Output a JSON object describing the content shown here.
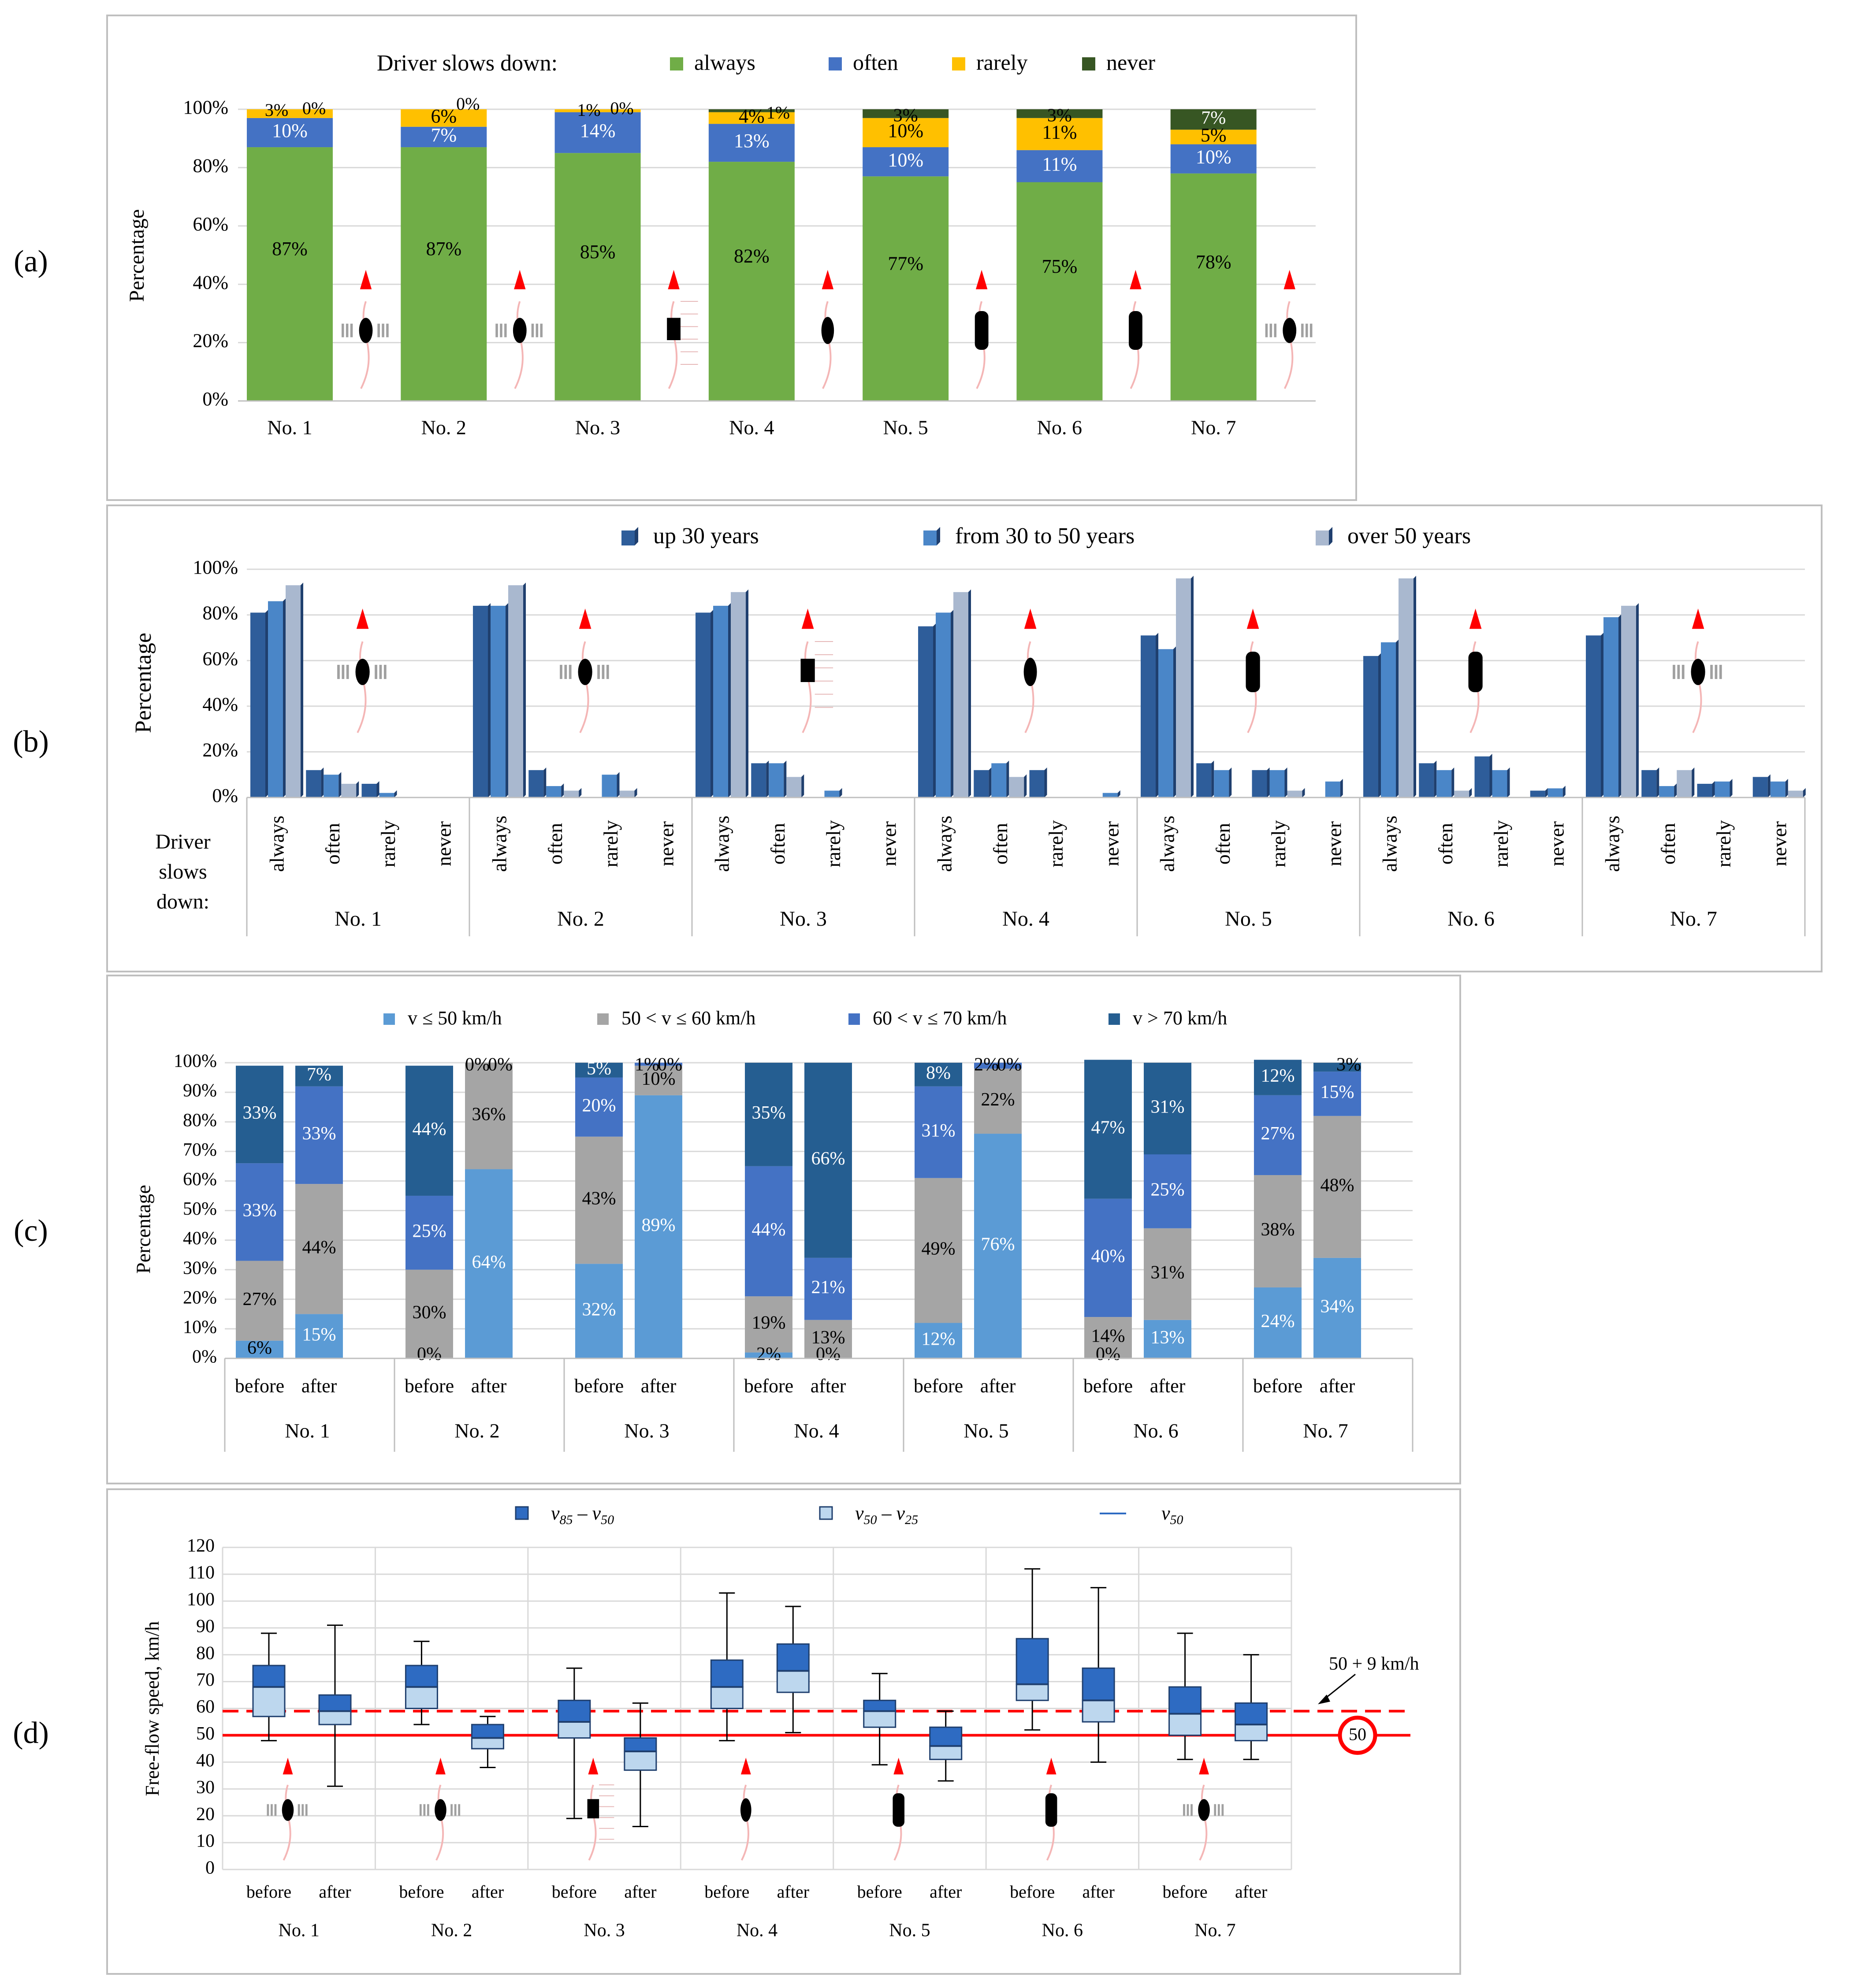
{
  "panel_labels": [
    "(a)",
    "(b)",
    "(c)",
    "(d)"
  ],
  "chart_data": [
    {
      "panel": "(a)",
      "type": "bar",
      "stacked": true,
      "legend_title": "Driver slows down:",
      "legend_placement": "top",
      "ylabel": "Percentage",
      "ylim": [
        0,
        100
      ],
      "yticks": [
        "0%",
        "20%",
        "40%",
        "60%",
        "80%",
        "100%"
      ],
      "categories": [
        "No. 1",
        "No. 2",
        "No. 3",
        "No. 4",
        "No. 5",
        "No. 6",
        "No. 7"
      ],
      "series": [
        {
          "name": "always",
          "color": "#70ad47",
          "values": [
            87,
            87,
            85,
            82,
            77,
            75,
            78
          ]
        },
        {
          "name": "often",
          "color": "#4472c4",
          "values": [
            10,
            7,
            14,
            13,
            10,
            11,
            10
          ]
        },
        {
          "name": "rarely",
          "color": "#ffc000",
          "values": [
            3,
            6,
            1,
            4,
            10,
            11,
            5
          ]
        },
        {
          "name": "never",
          "color": "#375623",
          "values": [
            0,
            0,
            0,
            1,
            3,
            3,
            7
          ]
        }
      ],
      "labels": [
        [
          "87%",
          "10%",
          "3%",
          "0%"
        ],
        [
          "87%",
          "7%",
          "6%",
          "0%"
        ],
        [
          "85%",
          "14%",
          "1%",
          "0%"
        ],
        [
          "82%",
          "13%",
          "4%",
          "1%"
        ],
        [
          "77%",
          "10%",
          "10%",
          "3%"
        ],
        [
          "75%",
          "11%",
          "11%",
          "3%"
        ],
        [
          "78%",
          "10%",
          "5%",
          "7%"
        ]
      ]
    },
    {
      "panel": "(b)",
      "type": "bar",
      "legend_placement": "top",
      "ylabel": "Percentage",
      "ylim": [
        0,
        100
      ],
      "yticks": [
        "0%",
        "20%",
        "40%",
        "60%",
        "80%",
        "100%"
      ],
      "row_header": [
        "Driver",
        "slows",
        "down:"
      ],
      "sub_categories": [
        "always",
        "often",
        "rarely",
        "never"
      ],
      "categories": [
        "No. 1",
        "No. 2",
        "No. 3",
        "No. 4",
        "No. 5",
        "No. 6",
        "No. 7"
      ],
      "series": [
        {
          "name": "up 30 years",
          "color": "#2e5d9a",
          "values": [
            [
              81,
              12,
              6,
              0
            ],
            [
              84,
              12,
              0,
              0
            ],
            [
              81,
              15,
              0,
              0
            ],
            [
              75,
              12,
              12,
              0
            ],
            [
              71,
              15,
              12,
              0
            ],
            [
              62,
              15,
              18,
              3
            ],
            [
              71,
              12,
              6,
              9
            ]
          ]
        },
        {
          "name": "from  30 to 50 years",
          "color": "#4a86c8",
          "values": [
            [
              86,
              10,
              2,
              0
            ],
            [
              84,
              5,
              10,
              0
            ],
            [
              84,
              15,
              3,
              0
            ],
            [
              81,
              15,
              0,
              2
            ],
            [
              65,
              12,
              12,
              7
            ],
            [
              68,
              12,
              12,
              4
            ],
            [
              79,
              5,
              7,
              7
            ]
          ]
        },
        {
          "name": "over 50 years",
          "color": "#a9b8cf",
          "values": [
            [
              93,
              6,
              0,
              0
            ],
            [
              93,
              3,
              3,
              0
            ],
            [
              90,
              9,
              0,
              0
            ],
            [
              90,
              9,
              0,
              0
            ],
            [
              96,
              0,
              3,
              0
            ],
            [
              96,
              3,
              0,
              0
            ],
            [
              84,
              12,
              0,
              3
            ]
          ]
        }
      ]
    },
    {
      "panel": "(c)",
      "type": "bar",
      "stacked": true,
      "legend_placement": "top",
      "ylabel": "Percentage",
      "ylim": [
        0,
        100
      ],
      "yticks": [
        "0%",
        "10%",
        "20%",
        "30%",
        "40%",
        "50%",
        "60%",
        "70%",
        "80%",
        "90%",
        "100%"
      ],
      "sub_categories": [
        "before",
        "after"
      ],
      "categories": [
        "No. 1",
        "No. 2",
        "No. 3",
        "No. 4",
        "No. 5",
        "No. 6",
        "No. 7"
      ],
      "series": [
        {
          "name": "v ≤ 50 km/h",
          "color": "#5b9bd5"
        },
        {
          "name": "50 < v ≤ 60 km/h",
          "color": "#a5a5a5"
        },
        {
          "name": "60 < v ≤ 70 km/h",
          "color": "#4472c4"
        },
        {
          "name": "v > 70 km/h",
          "color": "#255e91"
        }
      ],
      "bars": [
        [
          [
            6,
            27,
            33,
            33
          ],
          [
            15,
            44,
            33,
            7
          ]
        ],
        [
          [
            0,
            30,
            25,
            44
          ],
          [
            64,
            36,
            0,
            0
          ]
        ],
        [
          [
            32,
            43,
            20,
            5
          ],
          [
            89,
            10,
            1,
            0
          ]
        ],
        [
          [
            2,
            19,
            44,
            35
          ],
          [
            0,
            13,
            21,
            66
          ]
        ],
        [
          [
            12,
            49,
            31,
            8
          ],
          [
            76,
            22,
            2,
            0
          ]
        ],
        [
          [
            0,
            14,
            40,
            47
          ],
          [
            13,
            31,
            25,
            31
          ]
        ],
        [
          [
            24,
            38,
            27,
            12
          ],
          [
            34,
            48,
            15,
            3
          ]
        ]
      ],
      "labels": [
        [
          [
            "6%",
            "27%",
            "33%",
            "33%"
          ],
          [
            "15%",
            "44%",
            "33%",
            "7%"
          ]
        ],
        [
          [
            "0%",
            "30%",
            "25%",
            "44%"
          ],
          [
            "64%",
            "36%",
            "0%",
            "0%"
          ]
        ],
        [
          [
            "32%",
            "43%",
            "20%",
            "5%"
          ],
          [
            "89%",
            "10%",
            "1%",
            "0%"
          ]
        ],
        [
          [
            "2%",
            "19%",
            "44%",
            "35%"
          ],
          [
            "0%",
            "13%",
            "21%",
            "66%"
          ]
        ],
        [
          [
            "12%",
            "49%",
            "31%",
            "8%"
          ],
          [
            "76%",
            "22%",
            "2%",
            "0%"
          ]
        ],
        [
          [
            "0%",
            "14%",
            "40%",
            "47%"
          ],
          [
            "13%",
            "31%",
            "25%",
            "31%"
          ]
        ],
        [
          [
            "24%",
            "38%",
            "27%",
            "12%"
          ],
          [
            "34%",
            "48%",
            "15%",
            "3%"
          ]
        ]
      ]
    },
    {
      "panel": "(d)",
      "type": "box",
      "ylabel": "Free-flow speed, km/h",
      "ylim": [
        0,
        120
      ],
      "yticks": [
        "0",
        "10",
        "20",
        "30",
        "40",
        "50",
        "60",
        "70",
        "80",
        "90",
        "100",
        "110",
        "120"
      ],
      "sub_categories": [
        "before",
        "after"
      ],
      "categories": [
        "No. 1",
        "No. 2",
        "No. 3",
        "No. 4",
        "No. 5",
        "No. 6",
        "No. 7"
      ],
      "legend": [
        {
          "sym": "v",
          "sub": "85",
          "sym2": "v",
          "sub2": "50",
          "color": "#2e6bc2"
        },
        {
          "sym": "v",
          "sub": "50",
          "sym2": "v",
          "sub2": "25",
          "color": "#bdd7ee"
        },
        {
          "sym": "v",
          "sub": "50",
          "color": "#2e6bc2"
        }
      ],
      "boxes": [
        [
          {
            "min": 48,
            "q1": 57,
            "med": 68,
            "q3": 76,
            "max": 88
          },
          {
            "min": 31,
            "q1": 54,
            "med": 59,
            "q3": 65,
            "max": 91
          }
        ],
        [
          {
            "min": 54,
            "q1": 60,
            "med": 68,
            "q3": 76,
            "max": 85
          },
          {
            "min": 38,
            "q1": 45,
            "med": 49,
            "q3": 54,
            "max": 57
          }
        ],
        [
          {
            "min": 19,
            "q1": 49,
            "med": 55,
            "q3": 63,
            "max": 75
          },
          {
            "min": 16,
            "q1": 37,
            "med": 44,
            "q3": 49,
            "max": 62
          }
        ],
        [
          {
            "min": 48,
            "q1": 60,
            "med": 68,
            "q3": 78,
            "max": 103
          },
          {
            "min": 51,
            "q1": 66,
            "med": 74,
            "q3": 84,
            "max": 98
          }
        ],
        [
          {
            "min": 39,
            "q1": 53,
            "med": 59,
            "q3": 63,
            "max": 73
          },
          {
            "min": 33,
            "q1": 41,
            "med": 46,
            "q3": 53,
            "max": 59
          }
        ],
        [
          {
            "min": 52,
            "q1": 63,
            "med": 69,
            "q3": 86,
            "max": 112
          },
          {
            "min": 40,
            "q1": 55,
            "med": 63,
            "q3": 75,
            "max": 105
          }
        ],
        [
          {
            "min": 41,
            "q1": 50,
            "med": 58,
            "q3": 68,
            "max": 88
          },
          {
            "min": 41,
            "q1": 48,
            "med": 54,
            "q3": 62,
            "max": 80
          }
        ]
      ],
      "reference_lines": [
        {
          "value": 50,
          "style": "solid",
          "color": "#ff0000"
        },
        {
          "value": 59,
          "style": "dashed",
          "color": "#ff0000",
          "label": "50 + 9 km/h"
        }
      ],
      "speed_sign": "50"
    }
  ]
}
